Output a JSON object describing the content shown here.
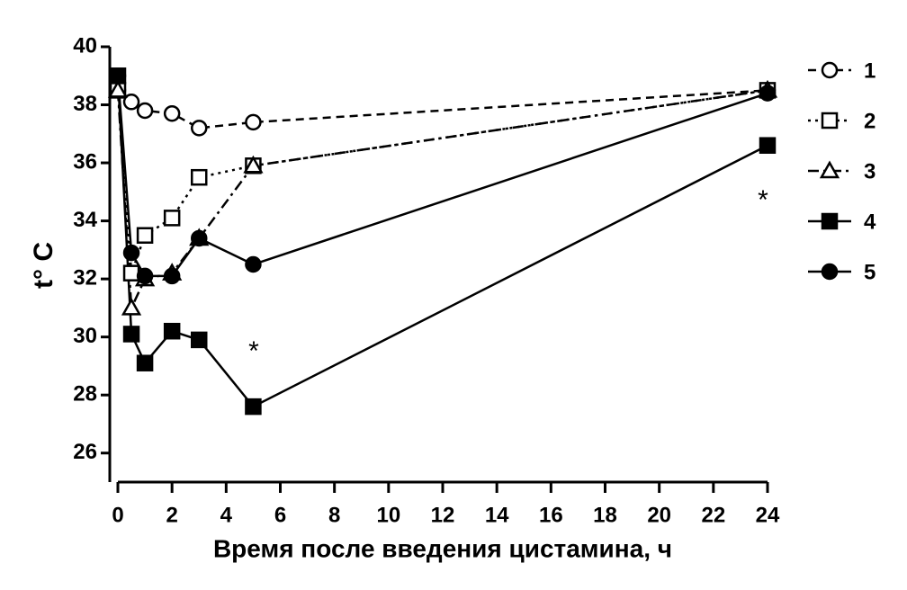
{
  "chart_data": {
    "type": "line",
    "x_label": "Время после введения цистамина, ч",
    "y_label": "t° C",
    "x": [
      0,
      0.5,
      1,
      2,
      3,
      5,
      24
    ],
    "series": [
      {
        "name": "1",
        "color": "#000000",
        "dash": "dashed",
        "marker": "circle-open",
        "values": [
          38.5,
          38.1,
          37.8,
          37.7,
          37.2,
          37.4,
          38.5
        ]
      },
      {
        "name": "2",
        "color": "#000000",
        "dash": "dotted",
        "marker": "square-open",
        "values": [
          38.5,
          32.2,
          33.5,
          34.1,
          35.5,
          35.9,
          38.5
        ]
      },
      {
        "name": "3",
        "color": "#000000",
        "dash": "dashdot",
        "marker": "triangle-open",
        "values": [
          38.5,
          31.0,
          32.0,
          32.2,
          33.4,
          35.9,
          38.5
        ]
      },
      {
        "name": "4",
        "color": "#000000",
        "dash": "solid",
        "marker": "square",
        "values": [
          39.0,
          30.1,
          29.1,
          30.2,
          29.9,
          27.6,
          36.6
        ]
      },
      {
        "name": "5",
        "color": "#000000",
        "dash": "solid",
        "marker": "circle",
        "values": [
          39.0,
          32.9,
          32.1,
          32.1,
          33.4,
          32.5,
          38.4
        ]
      }
    ],
    "annotations": [
      "*",
      "*"
    ],
    "xlim": [
      0,
      24
    ],
    "xticks": [
      0,
      2,
      4,
      6,
      8,
      10,
      12,
      14,
      16,
      18,
      20,
      22,
      24
    ],
    "ylim": [
      25,
      40
    ],
    "yticks": [
      26,
      28,
      30,
      32,
      34,
      36,
      38,
      40
    ],
    "grid": false,
    "legend": "right"
  }
}
